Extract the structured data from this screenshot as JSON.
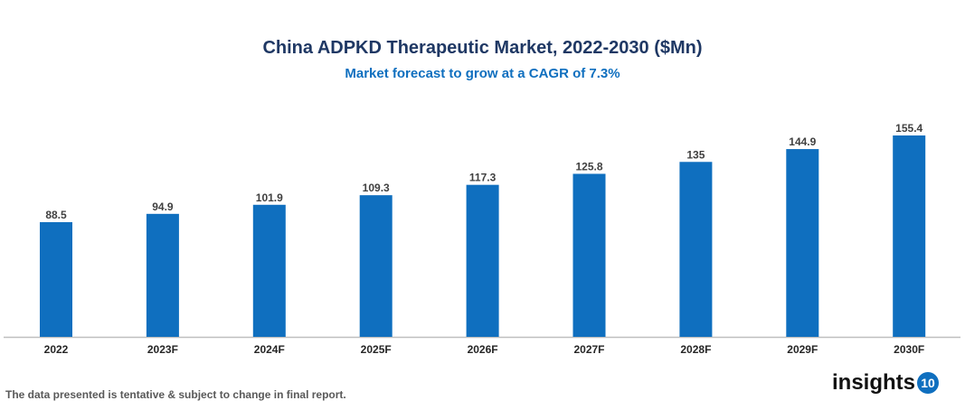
{
  "chart_data": {
    "type": "bar",
    "title": "China ADPKD Therapeutic Market, 2022-2030 ($Mn)",
    "subtitle": "Market forecast to grow at a CAGR of 7.3%",
    "categories": [
      "2022",
      "2023F",
      "2024F",
      "2025F",
      "2026F",
      "2027F",
      "2028F",
      "2029F",
      "2030F"
    ],
    "values": [
      88.5,
      94.9,
      101.9,
      109.3,
      117.3,
      125.8,
      135,
      144.9,
      155.4
    ],
    "value_labels": [
      "88.5",
      "94.9",
      "101.9",
      "109.3",
      "117.3",
      "125.8",
      "135",
      "144.9",
      "155.4"
    ],
    "xlabel": "",
    "ylabel": "",
    "ylim": [
      0,
      160
    ],
    "grid": false,
    "bar_color": "#0f6fbf"
  },
  "footer": {
    "note": "The data presented is tentative & subject to change in final report.",
    "logo_text": "insights",
    "logo_badge": "10"
  }
}
